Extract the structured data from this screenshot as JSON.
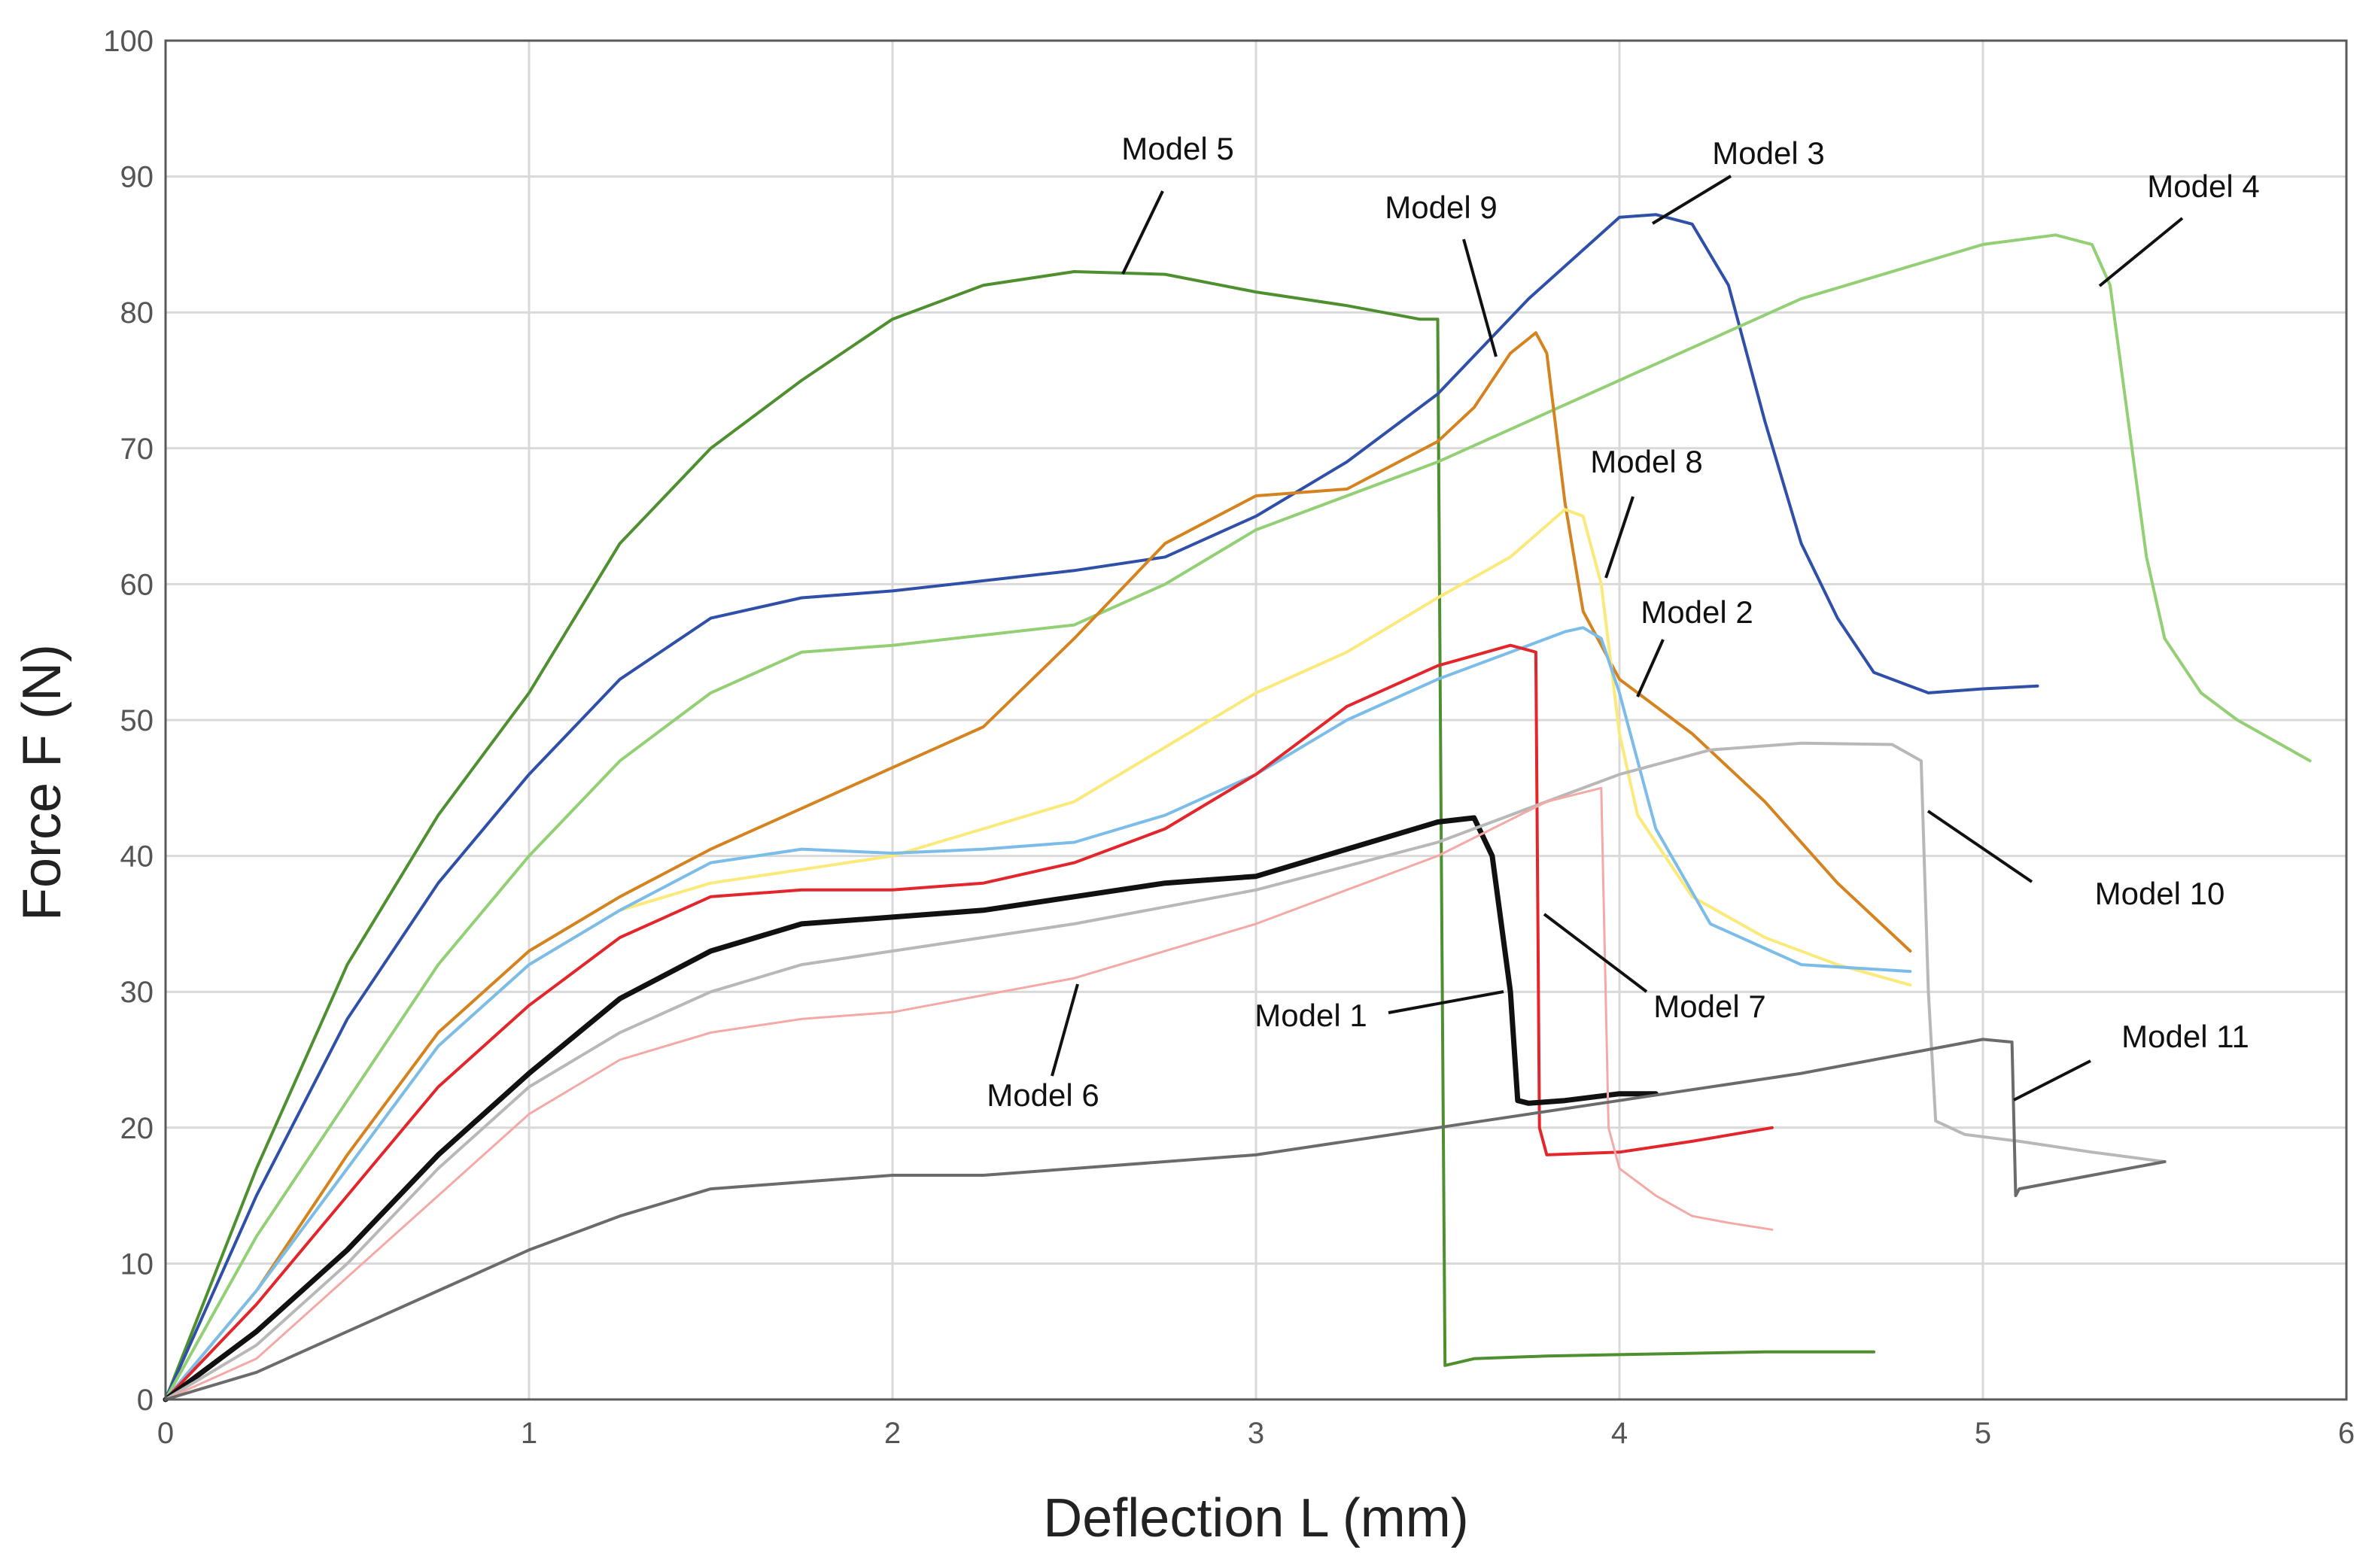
{
  "chart_data": {
    "type": "line",
    "title": "",
    "xlabel": "Deflection L (mm)",
    "ylabel": "Force F (N)",
    "xlim": [
      0,
      6
    ],
    "ylim": [
      0,
      100
    ],
    "xticks": [
      "0",
      "1",
      "2",
      "3",
      "4",
      "5",
      "6"
    ],
    "yticks": [
      "0",
      "10",
      "20",
      "30",
      "40",
      "50",
      "60",
      "70",
      "80",
      "90",
      "100"
    ],
    "grid": true,
    "series": [
      {
        "name": "Model 5",
        "color": "#4e8f2f",
        "x": [
          0,
          0.25,
          0.5,
          0.75,
          1,
          1.25,
          1.5,
          1.75,
          2,
          2.25,
          2.5,
          2.75,
          3,
          3.25,
          3.45,
          3.5,
          3.51,
          3.52,
          3.6,
          3.8,
          4,
          4.2,
          4.4,
          4.6,
          4.7
        ],
        "y": [
          0,
          17,
          32,
          43,
          52,
          63,
          70,
          75,
          79.5,
          82,
          83,
          82.8,
          81.5,
          80.5,
          79.5,
          79.5,
          40,
          2.5,
          3,
          3.2,
          3.3,
          3.4,
          3.5,
          3.5,
          3.5
        ]
      },
      {
        "name": "Model 3",
        "color": "#2f4fa8",
        "x": [
          0,
          0.25,
          0.5,
          0.75,
          1,
          1.25,
          1.5,
          1.75,
          2,
          2.5,
          2.75,
          3,
          3.25,
          3.5,
          3.75,
          4,
          4.1,
          4.2,
          4.3,
          4.4,
          4.5,
          4.6,
          4.7,
          4.85,
          5,
          5.15
        ],
        "y": [
          0,
          15,
          28,
          38,
          46,
          53,
          57.5,
          59,
          59.5,
          61,
          62,
          65,
          69,
          74,
          81,
          87,
          87.2,
          86.5,
          82,
          72,
          63,
          57.5,
          53.5,
          52,
          52.3,
          52.5
        ]
      },
      {
        "name": "Model 4",
        "color": "#93cf74",
        "x": [
          0,
          0.25,
          0.5,
          0.75,
          1,
          1.25,
          1.5,
          1.75,
          2,
          2.5,
          2.75,
          3,
          3.5,
          4,
          4.5,
          5,
          5.2,
          5.3,
          5.35,
          5.4,
          5.45,
          5.5,
          5.6,
          5.7,
          5.8,
          5.9
        ],
        "y": [
          0,
          12,
          22,
          32,
          40,
          47,
          52,
          55,
          55.5,
          57,
          60,
          64,
          69,
          75,
          81,
          85,
          85.7,
          85,
          82,
          72,
          62,
          56,
          52,
          50,
          48.5,
          47
        ]
      },
      {
        "name": "Model 9",
        "color": "#d4831f",
        "x": [
          0,
          0.25,
          0.5,
          0.75,
          1,
          1.25,
          1.5,
          1.75,
          2,
          2.25,
          2.5,
          2.75,
          3,
          3.25,
          3.5,
          3.6,
          3.7,
          3.77,
          3.8,
          3.85,
          3.9,
          4,
          4.2,
          4.4,
          4.6,
          4.8
        ],
        "y": [
          0,
          8,
          18,
          27,
          33,
          37,
          40.5,
          43.5,
          46.5,
          49.5,
          56,
          63,
          66.5,
          67,
          70.5,
          73,
          77,
          78.5,
          77,
          66,
          58,
          53,
          49,
          44,
          38,
          33
        ]
      },
      {
        "name": "Model 8",
        "color": "#fbe97a",
        "x": [
          0,
          0.25,
          0.5,
          0.75,
          1,
          1.25,
          1.5,
          1.75,
          2,
          2.25,
          2.5,
          2.75,
          3,
          3.25,
          3.5,
          3.7,
          3.85,
          3.9,
          3.95,
          4,
          4.05,
          4.2,
          4.4,
          4.6,
          4.8
        ],
        "y": [
          0,
          8,
          17,
          26,
          32,
          36,
          38,
          39,
          40,
          42,
          44,
          48,
          52,
          55,
          59,
          62,
          65.5,
          65,
          60,
          49,
          43,
          37,
          34,
          32,
          30.5
        ]
      },
      {
        "name": "Model 2",
        "color": "#7bbde8",
        "x": [
          0,
          0.25,
          0.5,
          0.75,
          1,
          1.25,
          1.5,
          1.75,
          2,
          2.25,
          2.5,
          2.75,
          3,
          3.25,
          3.5,
          3.75,
          3.85,
          3.9,
          3.95,
          4,
          4.1,
          4.25,
          4.5,
          4.8
        ],
        "y": [
          0,
          8,
          17,
          26,
          32,
          36,
          39.5,
          40.5,
          40.2,
          40.5,
          41,
          43,
          46,
          50,
          53,
          55.5,
          56.5,
          56.8,
          56,
          52,
          42,
          35,
          32,
          31.5
        ]
      },
      {
        "name": "Model 7",
        "color": "#e3262b",
        "x": [
          0,
          0.25,
          0.5,
          0.75,
          1,
          1.25,
          1.5,
          1.75,
          2,
          2.25,
          2.5,
          2.75,
          3,
          3.25,
          3.5,
          3.7,
          3.77,
          3.78,
          3.8,
          4,
          4.2,
          4.42
        ],
        "y": [
          0,
          7,
          15,
          23,
          29,
          34,
          37,
          37.5,
          37.5,
          38,
          39.5,
          42,
          46,
          51,
          54,
          55.5,
          55,
          20,
          18,
          18.2,
          19,
          20
        ]
      },
      {
        "name": "Model 1",
        "color": "#111111",
        "x": [
          0,
          0.25,
          0.5,
          0.75,
          1,
          1.25,
          1.5,
          1.75,
          2,
          2.25,
          2.5,
          2.75,
          3,
          3.25,
          3.5,
          3.6,
          3.65,
          3.7,
          3.72,
          3.75,
          3.85,
          4,
          4.1
        ],
        "y": [
          0,
          5,
          11,
          18,
          24,
          29.5,
          33,
          35,
          35.5,
          36,
          37,
          38,
          38.5,
          40.5,
          42.5,
          42.8,
          40,
          30,
          22,
          21.8,
          22,
          22.5,
          22.5
        ]
      },
      {
        "name": "Model 10",
        "color": "#b8b8b8",
        "x": [
          0,
          0.25,
          0.5,
          0.75,
          1,
          1.25,
          1.5,
          1.75,
          2,
          2.5,
          3,
          3.5,
          4,
          4.25,
          4.5,
          4.75,
          4.83,
          4.85,
          4.87,
          4.95,
          5.1,
          5.3,
          5.5
        ],
        "y": [
          0,
          4,
          10,
          17,
          23,
          27,
          30,
          32,
          33,
          35,
          37.5,
          41,
          46,
          47.8,
          48.3,
          48.2,
          47,
          30,
          20.5,
          19.5,
          19,
          18.2,
          17.5
        ]
      },
      {
        "name": "Model 6",
        "color": "#f4a9a6",
        "x": [
          0,
          0.25,
          0.5,
          0.75,
          1,
          1.25,
          1.5,
          1.75,
          2,
          2.5,
          3,
          3.5,
          3.8,
          3.95,
          3.97,
          4,
          4.1,
          4.2,
          4.3,
          4.42
        ],
        "y": [
          0,
          3,
          9,
          15,
          21,
          25,
          27,
          28,
          28.5,
          31,
          35,
          40,
          44,
          45,
          20,
          17,
          15,
          13.5,
          13,
          12.5
        ]
      },
      {
        "name": "Model 11",
        "color": "#6b6b6b",
        "x": [
          0,
          0.25,
          0.5,
          0.75,
          1,
          1.25,
          1.5,
          1.75,
          2,
          2.25,
          2.5,
          3,
          3.5,
          4,
          4.5,
          5,
          5.08,
          5.09,
          5.1,
          5.3,
          5.5
        ],
        "y": [
          0,
          2,
          5,
          8,
          11,
          13.5,
          15.5,
          16,
          16.5,
          16.5,
          17,
          18,
          20,
          22,
          24,
          26.5,
          26.3,
          15,
          15.5,
          16.5,
          17.5
        ]
      }
    ],
    "annotations": [
      {
        "text": "Model 5",
        "series": "Model 5"
      },
      {
        "text": "Model 3",
        "series": "Model 3"
      },
      {
        "text": "Model 9",
        "series": "Model 9"
      },
      {
        "text": "Model  4",
        "series": "Model 4"
      },
      {
        "text": "Model 8",
        "series": "Model 8"
      },
      {
        "text": "Model 2",
        "series": "Model 2"
      },
      {
        "text": "Model 10",
        "series": "Model 10"
      },
      {
        "text": "Model 7",
        "series": "Model 7"
      },
      {
        "text": "Model 1",
        "series": "Model 1"
      },
      {
        "text": "Model 11",
        "series": "Model 11"
      },
      {
        "text": "Model 6",
        "series": "Model 6"
      }
    ]
  }
}
